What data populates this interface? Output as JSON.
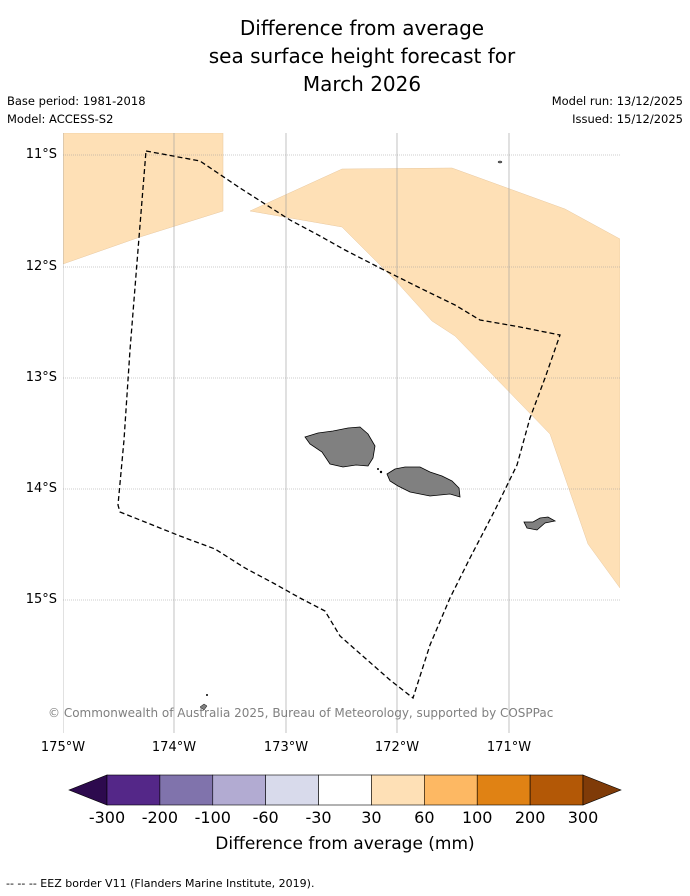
{
  "title_lines": [
    "Difference from average",
    "sea surface height forecast for",
    "March 2026"
  ],
  "base_period": "Base period: 1981-2018",
  "model": "Model: ACCESS-S2",
  "model_run": "Model run: 13/12/2025",
  "issued": "Issued: 15/12/2025",
  "lat_ticks": [
    "11°S",
    "12°S",
    "13°S",
    "14°S",
    "15°S"
  ],
  "lon_ticks": [
    "175°W",
    "174°W",
    "173°W",
    "172°W",
    "171°W"
  ],
  "copyright": "© Commonwealth of Australia 2025, Bureau of Meteorology, supported by COSPPac",
  "colorbar": {
    "labels": [
      "-300",
      "-200",
      "-100",
      "-60",
      "-30",
      "30",
      "60",
      "100",
      "200",
      "300"
    ],
    "colors": [
      "#2d0a4e",
      "#542788",
      "#8073ac",
      "#b2abd2",
      "#d8daeb",
      "#ffffff",
      "#fee0b6",
      "#fdb863",
      "#e08214",
      "#b35806",
      "#7f3b08"
    ],
    "title": "Difference from average (mm)"
  },
  "footnote": "--  --  -- EEZ border V11 (Flanders Marine Institute, 2019).",
  "map_colors": {
    "positive_anomaly": "#fee0b6",
    "land": "#808080",
    "grid": "#9a9a9a"
  }
}
